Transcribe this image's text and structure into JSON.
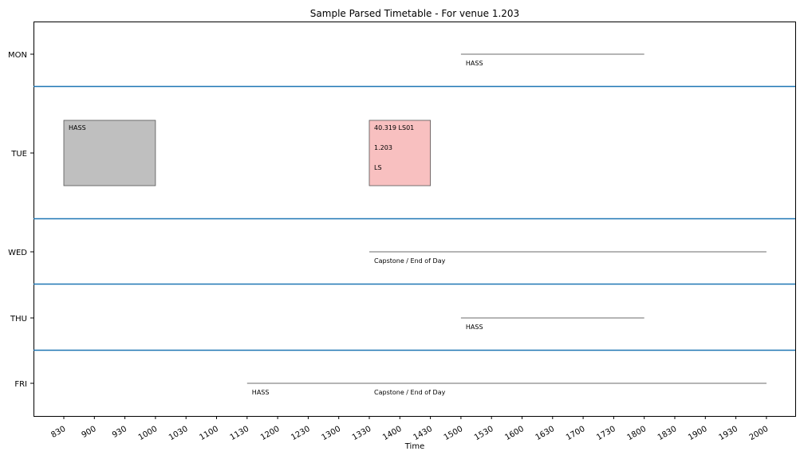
{
  "chart_data": {
    "type": "bar",
    "title": "Sample Parsed Timetable - For venue 1.203",
    "xlabel": "Time",
    "ylabel": "",
    "days": [
      "MON",
      "TUE",
      "WED",
      "THU",
      "FRI"
    ],
    "x_ticks": [
      "830",
      "900",
      "930",
      "1000",
      "1030",
      "1100",
      "1130",
      "1200",
      "1230",
      "1300",
      "1330",
      "1400",
      "1430",
      "1500",
      "1530",
      "1600",
      "1630",
      "1700",
      "1730",
      "1800",
      "1830",
      "1900",
      "1930",
      "2000"
    ],
    "blocks": [
      {
        "day": "TUE",
        "start": "0830",
        "end": "1000",
        "color": "#bfbfbf",
        "lines": [
          "HASS"
        ]
      },
      {
        "day": "TUE",
        "start": "1330",
        "end": "1430",
        "color": "#f8c0c0",
        "lines": [
          "40.319 LS01",
          "1.203",
          "LS"
        ]
      }
    ],
    "spans": [
      {
        "day": "MON",
        "start": "1500",
        "end": "1800",
        "label": "HASS"
      },
      {
        "day": "WED",
        "start": "1330",
        "end": "2000",
        "label": "Capstone / End of Day"
      },
      {
        "day": "THU",
        "start": "1500",
        "end": "1800",
        "label": "HASS"
      },
      {
        "day": "FRI",
        "start": "1130",
        "end": "2000",
        "label": "HASS"
      },
      {
        "day": "FRI",
        "start": "1330",
        "end": "2000",
        "label": "Capstone / End of Day"
      }
    ],
    "separator_color": "#1f77b4"
  }
}
